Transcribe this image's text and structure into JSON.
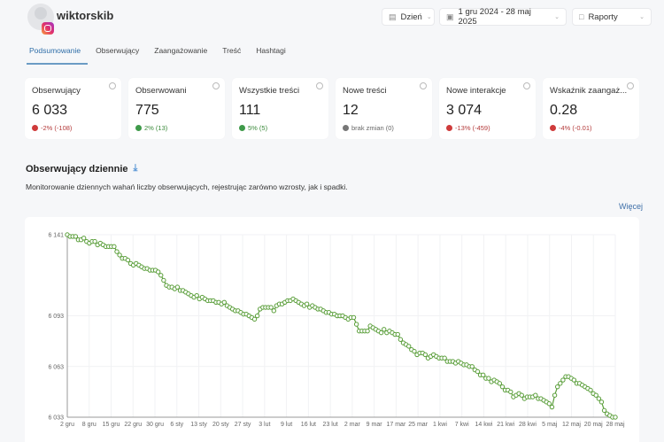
{
  "header": {
    "username": "wiktorskib",
    "platform_icon": "instagram-icon"
  },
  "tabs": [
    {
      "label": "Podsumowanie",
      "active": true
    },
    {
      "label": "Obserwujący",
      "active": false
    },
    {
      "label": "Zaangażowanie",
      "active": false
    },
    {
      "label": "Treść",
      "active": false
    },
    {
      "label": "Hashtagi",
      "active": false
    }
  ],
  "controls": {
    "granularity": "Dzień",
    "date_range": "1 gru 2024 - 28 maj 2025",
    "reports": "Raporty"
  },
  "cards": [
    {
      "title": "Obserwujący",
      "value": "6 033",
      "delta": "-2% (-108)",
      "trend": "neg"
    },
    {
      "title": "Obserwowani",
      "value": "775",
      "delta": "2% (13)",
      "trend": "pos"
    },
    {
      "title": "Wszystkie treści",
      "value": "111",
      "delta": "5% (5)",
      "trend": "pos"
    },
    {
      "title": "Nowe treści",
      "value": "12",
      "delta": "brak zmian (0)",
      "trend": "neu"
    },
    {
      "title": "Nowe interakcje",
      "value": "3 074",
      "delta": "-13% (-459)",
      "trend": "neg"
    },
    {
      "title": "Wskaźnik zaangaż...",
      "value": "0.28",
      "delta": "-4% (-0.01)",
      "trend": "neg"
    }
  ],
  "section": {
    "title": "Obserwujący dziennie",
    "description": "Monitorowanie dziennych wahań liczby obserwujących, rejestrując zarówno wzrosty, jak i spadki.",
    "more_label": "Więcej"
  },
  "chart_data": {
    "type": "line",
    "title": "Obserwujący dziennie",
    "xlabel": "",
    "ylabel": "",
    "ylim": [
      6033,
      6141
    ],
    "yticks": [
      "6 033",
      "6 063",
      "6 093",
      "6 141"
    ],
    "ytick_values": [
      6033,
      6063,
      6093,
      6141
    ],
    "xticks": [
      "2 gru",
      "8 gru",
      "15 gru",
      "22 gru",
      "30 gru",
      "6 sty",
      "13 sty",
      "20 sty",
      "27 sty",
      "3 lut",
      "9 lut",
      "16 lut",
      "23 lut",
      "2 mar",
      "9 mar",
      "17 mar",
      "25 mar",
      "1 kwi",
      "7 kwi",
      "14 kwi",
      "21 kwi",
      "28 kwi",
      "5 maj",
      "12 maj",
      "20 maj",
      "28 maj"
    ],
    "grid": true,
    "legend": "none",
    "color": "#5a9e3a",
    "series": [
      {
        "name": "Obserwujący",
        "x_start": "2 gru 2024",
        "x_end": "28 maj 2025",
        "values": [
          6141,
          6140,
          6140,
          6140,
          6138,
          6138,
          6139,
          6137,
          6136,
          6137,
          6137,
          6135,
          6136,
          6135,
          6134,
          6134,
          6134,
          6134,
          6131,
          6129,
          6127,
          6127,
          6126,
          6124,
          6123,
          6124,
          6123,
          6122,
          6121,
          6121,
          6120,
          6120,
          6120,
          6119,
          6117,
          6114,
          6111,
          6110,
          6110,
          6109,
          6110,
          6108,
          6108,
          6107,
          6106,
          6105,
          6104,
          6105,
          6103,
          6104,
          6103,
          6102,
          6102,
          6102,
          6101,
          6101,
          6100,
          6101,
          6099,
          6098,
          6097,
          6096,
          6096,
          6095,
          6094,
          6094,
          6093,
          6092,
          6091,
          6093,
          6097,
          6098,
          6098,
          6098,
          6098,
          6096,
          6099,
          6100,
          6100,
          6101,
          6102,
          6102,
          6103,
          6102,
          6101,
          6100,
          6099,
          6100,
          6098,
          6099,
          6098,
          6097,
          6097,
          6096,
          6095,
          6095,
          6094,
          6094,
          6093,
          6093,
          6093,
          6092,
          6091,
          6092,
          6092,
          6088,
          6084,
          6084,
          6084,
          6084,
          6087,
          6086,
          6085,
          6084,
          6083,
          6085,
          6083,
          6084,
          6083,
          6082,
          6082,
          6079,
          6077,
          6076,
          6075,
          6073,
          6072,
          6070,
          6071,
          6071,
          6070,
          6068,
          6069,
          6070,
          6069,
          6068,
          6068,
          6068,
          6066,
          6066,
          6066,
          6065,
          6066,
          6065,
          6064,
          6064,
          6063,
          6063,
          6061,
          6060,
          6058,
          6058,
          6056,
          6056,
          6054,
          6055,
          6054,
          6053,
          6051,
          6049,
          6049,
          6048,
          6045,
          6046,
          6047,
          6046,
          6044,
          6045,
          6045,
          6045,
          6046,
          6044,
          6044,
          6043,
          6042,
          6041,
          6039,
          6046,
          6051,
          6053,
          6055,
          6057,
          6057,
          6056,
          6055,
          6053,
          6053,
          6052,
          6051,
          6050,
          6049,
          6047,
          6046,
          6044,
          6042,
          6037,
          6035,
          6034,
          6033,
          6033
        ]
      }
    ]
  }
}
